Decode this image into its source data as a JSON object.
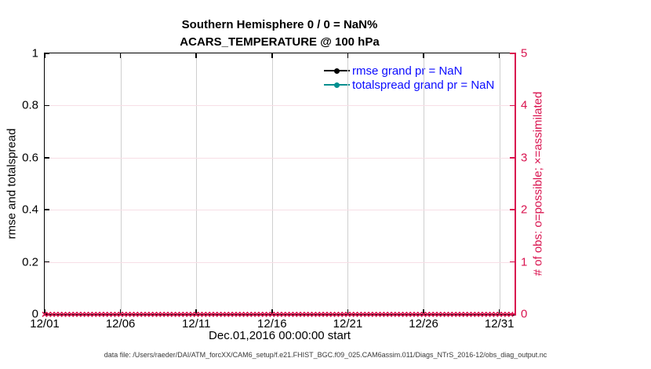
{
  "colors": {
    "accent_pink": "#d9134f",
    "teal": "#008f8f",
    "legend_blue": "#0b0bff",
    "grid_vertical": "#cfcfcf",
    "grid_horizontal": "#f7dee6",
    "axis_black": "#000000"
  },
  "caption": "data file: /Users/raeder/DAI/ATM_forcXX/CAM6_setup/f.e21.FHIST_BGC.f09_025.CAM6assim.011/Diags_NTrS_2016-12/obs_diag_output.nc",
  "chart_data": {
    "type": "line",
    "title_line1": "Southern Hemisphere 0 / 0 = NaN%",
    "title_line2": "ACARS_TEMPERATURE @ 100 hPa",
    "xlabel": "Dec.01,2016 00:00:00 start",
    "ylabel_left": "rmse and totalspread",
    "ylabel_right": "# of obs: o=possible; ×=assimilated",
    "x_range_days": [
      0,
      31
    ],
    "x_ticks": [
      {
        "day": 0,
        "label": "12/01"
      },
      {
        "day": 5,
        "label": "12/06"
      },
      {
        "day": 10,
        "label": "12/11"
      },
      {
        "day": 15,
        "label": "12/16"
      },
      {
        "day": 20,
        "label": "12/21"
      },
      {
        "day": 25,
        "label": "12/26"
      },
      {
        "day": 30,
        "label": "12/31"
      }
    ],
    "ylim_left": [
      0,
      1
    ],
    "y_ticks_left": [
      {
        "v": 0,
        "label": "0"
      },
      {
        "v": 0.2,
        "label": "0.2"
      },
      {
        "v": 0.4,
        "label": "0.4"
      },
      {
        "v": 0.6,
        "label": "0.6"
      },
      {
        "v": 0.8,
        "label": "0.8"
      },
      {
        "v": 1,
        "label": "1"
      }
    ],
    "ylim_right": [
      0,
      5
    ],
    "y_ticks_right": [
      {
        "v": 0,
        "label": "0"
      },
      {
        "v": 1,
        "label": "1"
      },
      {
        "v": 2,
        "label": "2"
      },
      {
        "v": 3,
        "label": "3"
      },
      {
        "v": 4,
        "label": "4"
      },
      {
        "v": 5,
        "label": "5"
      }
    ],
    "series": [
      {
        "name": "rmse grand pr = NaN",
        "color": "#000000",
        "values": "NaN"
      },
      {
        "name": "totalspread grand pr = NaN",
        "color": "#008f8f",
        "values": "NaN"
      }
    ],
    "obs_possible": 0,
    "obs_assimilated": 0,
    "obs_assimilated_markers": {
      "glyph": "×",
      "color": "#d9134f",
      "y_value": 0,
      "count": 124,
      "start_day": 0,
      "interval_days": 0.25
    },
    "grid": true,
    "legend_position": "upper-center-right"
  }
}
